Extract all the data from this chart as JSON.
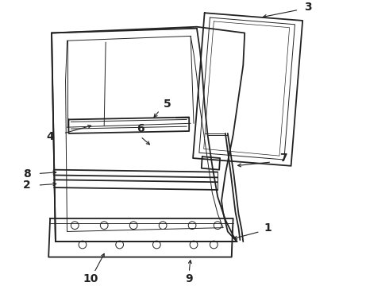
{
  "background_color": "#ffffff",
  "line_color": "#222222",
  "lw_main": 1.3,
  "lw_thin": 0.7,
  "lw_thick": 1.8,
  "label_fontsize": 10,
  "figsize": [
    4.9,
    3.6
  ],
  "dpi": 100,
  "xlim": [
    0,
    490
  ],
  "ylim": [
    0,
    360
  ]
}
